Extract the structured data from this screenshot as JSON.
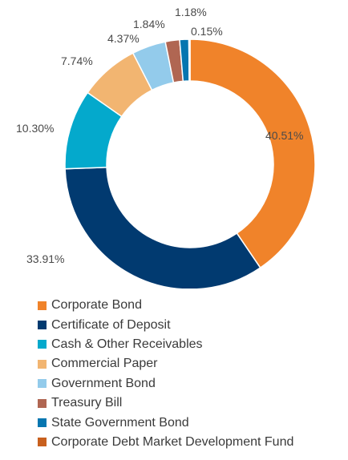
{
  "chart_data": {
    "type": "pie",
    "style": "donut",
    "title": "",
    "legend_position": "bottom-left",
    "slices": [
      {
        "name": "Corporate Bond",
        "value": 40.51,
        "label": "40.51%",
        "color": "#F0832A"
      },
      {
        "name": "Certificate of Deposit",
        "value": 33.91,
        "label": "33.91%",
        "color": "#013A70"
      },
      {
        "name": "Cash & Other Receivables",
        "value": 10.3,
        "label": "10.30%",
        "color": "#04A9CC"
      },
      {
        "name": "Commercial Paper",
        "value": 7.74,
        "label": "7.74%",
        "color": "#F2B571"
      },
      {
        "name": "Government Bond",
        "value": 4.37,
        "label": "4.37%",
        "color": "#93CBEB"
      },
      {
        "name": "Treasury Bill",
        "value": 1.84,
        "label": "1.84%",
        "color": "#B06652"
      },
      {
        "name": "State Government Bond",
        "value": 1.18,
        "label": "1.18%",
        "color": "#0676B0"
      },
      {
        "name": "Corporate Debt Market Development Fund",
        "value": 0.15,
        "label": "0.15%",
        "color": "#C8601E"
      }
    ]
  }
}
